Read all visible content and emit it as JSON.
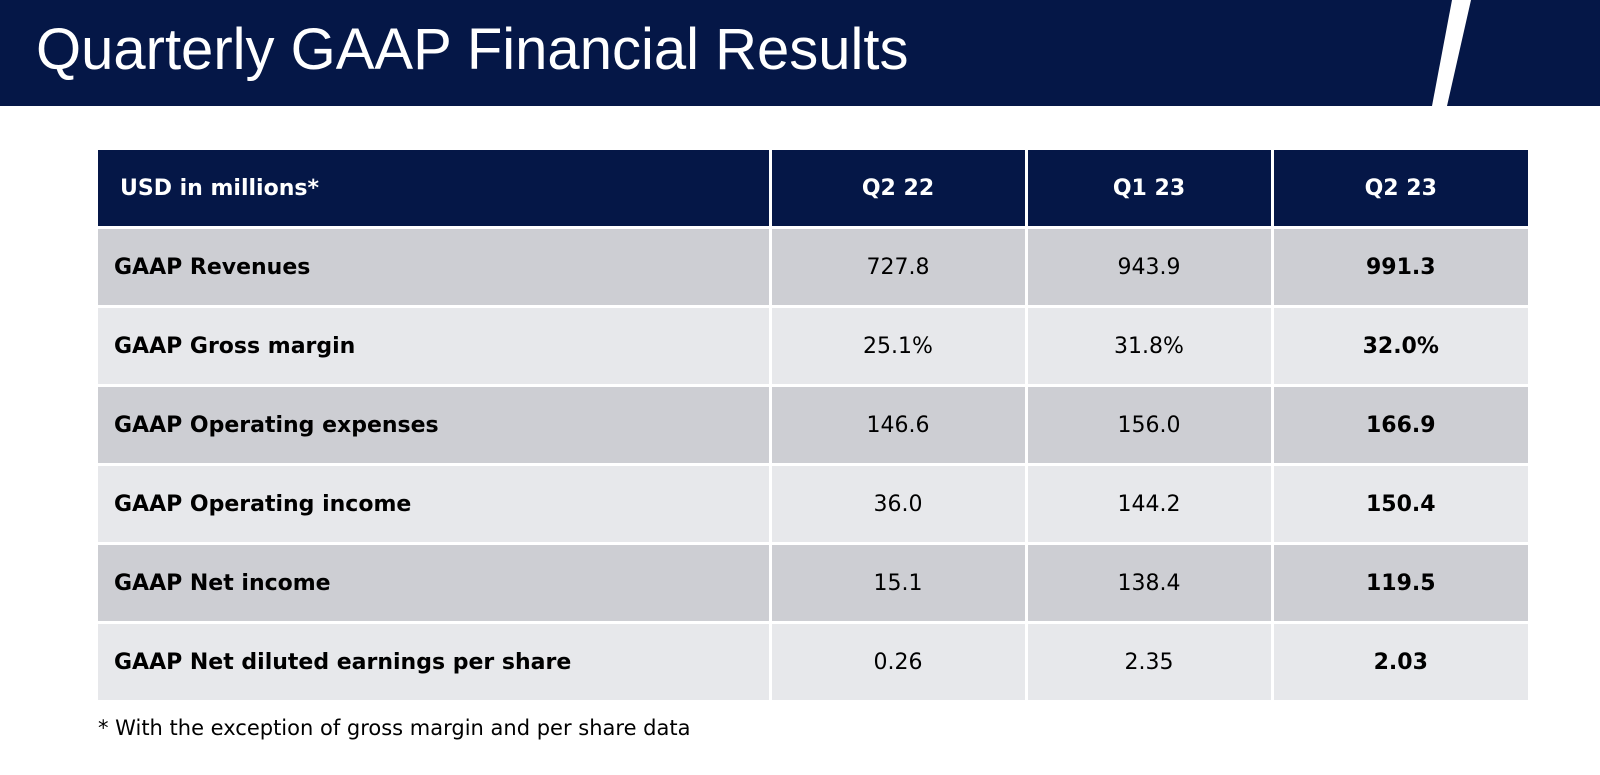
{
  "header": {
    "title": "Quarterly GAAP Financial Results",
    "background_color": "#051747",
    "accent_color": "#ffffff"
  },
  "table": {
    "columns": [
      "USD in millions*",
      "Q2 22",
      "Q1 23",
      "Q2 23"
    ],
    "header_color": "#051747",
    "row_color_dark": "#cdced3",
    "row_color_light": "#e7e8eb",
    "rows": [
      {
        "label": "GAAP Revenues",
        "q2_22": "727.8",
        "q1_23": "943.9",
        "q2_23": "991.3"
      },
      {
        "label": "GAAP Gross margin",
        "q2_22": "25.1%",
        "q1_23": "31.8%",
        "q2_23": "32.0%"
      },
      {
        "label": "GAAP Operating expenses",
        "q2_22": "146.6",
        "q1_23": "156.0",
        "q2_23": "166.9"
      },
      {
        "label": "GAAP Operating income",
        "q2_22": "36.0",
        "q1_23": "144.2",
        "q2_23": "150.4"
      },
      {
        "label": "GAAP Net income",
        "q2_22": "15.1",
        "q1_23": "138.4",
        "q2_23": "119.5"
      },
      {
        "label": "GAAP Net diluted earnings per share",
        "q2_22": "0.26",
        "q1_23": "2.35",
        "q2_23": "2.03"
      }
    ]
  },
  "footnote": "* With the exception of gross margin and per share data"
}
